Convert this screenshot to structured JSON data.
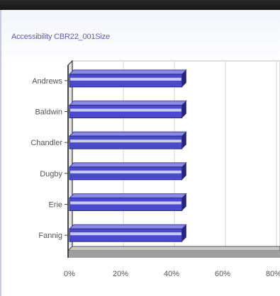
{
  "chart_data": {
    "type": "bar",
    "orientation": "horizontal",
    "title": "Accessibility CBR22_001Size",
    "categories": [
      "Andrews",
      "Baldwin",
      "Chandler",
      "Dugby",
      "Erie",
      "Fannig"
    ],
    "values": [
      43,
      43,
      43,
      43,
      43,
      43
    ],
    "xlim": [
      0,
      80
    ],
    "x_ticks": [
      "0%",
      "20%",
      "40%",
      "60%",
      "80%"
    ],
    "grid": true,
    "legend": "none",
    "colors": {
      "bar_face": "#4a4acc",
      "bar_top": "#8a8ae6",
      "bar_end": "#25257a",
      "axis_floor": "#9e9e9e",
      "grid": "#d6d6d6",
      "tick_text": "#555555",
      "title_text": "#5a5fa8"
    }
  }
}
